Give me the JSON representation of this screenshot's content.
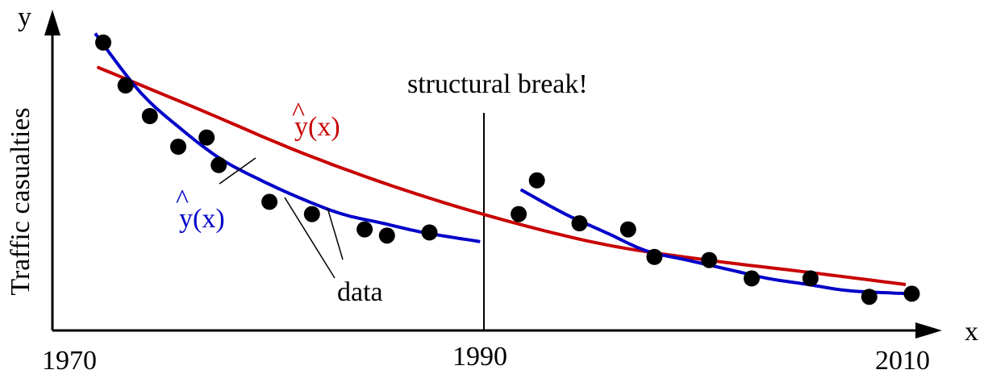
{
  "chart_data": {
    "type": "scatter",
    "xlabel": "x",
    "ylabel": "y",
    "ylabel_side": "Traffic casualties",
    "x_ticks": [
      "1970",
      "1990",
      "2010"
    ],
    "xlim": [
      1968,
      2011
    ],
    "ylim": [
      0,
      100
    ],
    "grid": false,
    "annotations": {
      "break_label": "structural break!",
      "break_x": 1990,
      "data_label": "data",
      "red_fit_label": "y(x)",
      "blue_fit_label": "y(x)",
      "hat": "^"
    },
    "series": [
      {
        "kind": "points",
        "color": "#000000",
        "x": [
          1970.2,
          1971.3,
          1972.5,
          1973.9,
          1975.3,
          1975.9,
          1978.4,
          1980.5,
          1983.1,
          1984.2,
          1986.3,
          1990.7,
          1991.6,
          1993.7,
          1996.1,
          1997.4,
          2000.1,
          2002.2,
          2005.1,
          2008.0,
          2010.1
        ],
        "y": [
          94,
          80,
          70,
          60,
          63,
          54,
          42,
          38,
          33,
          31,
          32,
          38,
          49,
          35,
          33,
          24,
          23,
          17,
          17,
          11,
          12
        ]
      },
      {
        "kind": "fit",
        "color": "#c80000",
        "x": [
          1969.9,
          1975,
          1980,
          1985,
          1990,
          1995,
          2000,
          2005,
          2009.8
        ],
        "y": [
          86,
          72,
          58,
          46,
          36,
          28,
          23,
          19,
          15
        ]
      },
      {
        "kind": "fit",
        "color": "#0000c8",
        "x": [
          1969.8,
          1972,
          1974,
          1976,
          1978,
          1980,
          1982,
          1984,
          1986,
          1988.8
        ],
        "y": [
          97,
          78,
          66,
          56,
          49,
          43,
          38,
          35,
          32,
          29
        ]
      },
      {
        "kind": "fit",
        "color": "#0000c8",
        "x": [
          1990.8,
          1993,
          1995,
          1997,
          1999,
          2001,
          2003,
          2005,
          2007,
          2010
        ],
        "y": [
          46,
          38,
          32,
          26,
          23,
          20,
          17,
          15,
          13,
          12
        ]
      }
    ]
  }
}
